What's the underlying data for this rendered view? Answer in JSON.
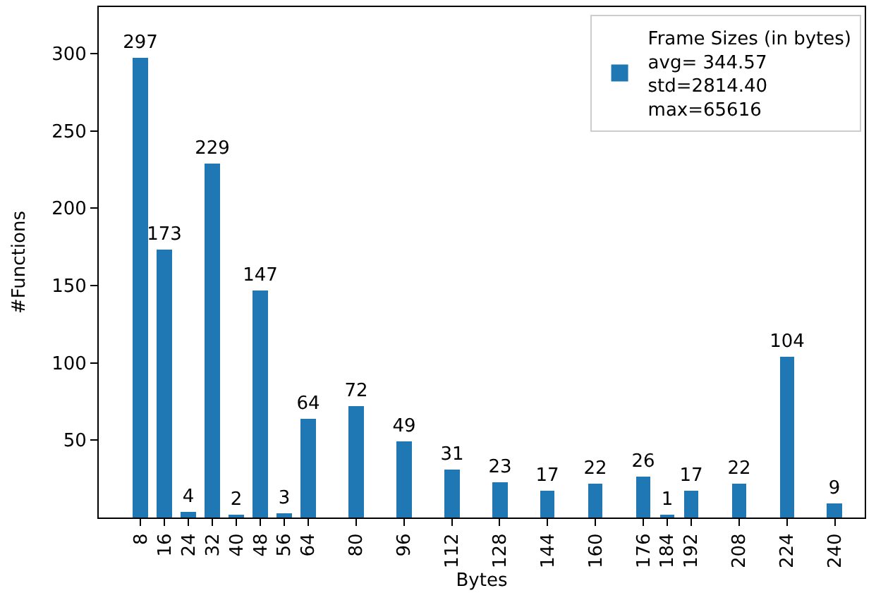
{
  "chart_data": {
    "type": "bar",
    "xlabel": "Bytes",
    "ylabel": "#Functions",
    "x": [
      8,
      16,
      24,
      32,
      40,
      48,
      56,
      64,
      80,
      96,
      112,
      128,
      144,
      160,
      176,
      184,
      192,
      208,
      224,
      240
    ],
    "series": [
      {
        "name": "Frame Sizes (in bytes)\navg= 344.57\nstd=2814.40\nmax=65616",
        "color": "#1f77b4",
        "values": [
          297,
          173,
          4,
          229,
          2,
          147,
          3,
          64,
          72,
          49,
          31,
          23,
          17,
          22,
          26,
          1,
          17,
          22,
          104,
          9
        ]
      }
    ],
    "xlim": [
      -6,
      250
    ],
    "xticks": [
      8,
      16,
      24,
      32,
      40,
      48,
      56,
      64,
      80,
      96,
      112,
      128,
      144,
      160,
      176,
      184,
      192,
      208,
      224,
      240
    ],
    "ylim": [
      0,
      330
    ],
    "yticks": [
      50,
      100,
      150,
      200,
      250,
      300
    ],
    "data_labels": true,
    "legend": "top right"
  }
}
